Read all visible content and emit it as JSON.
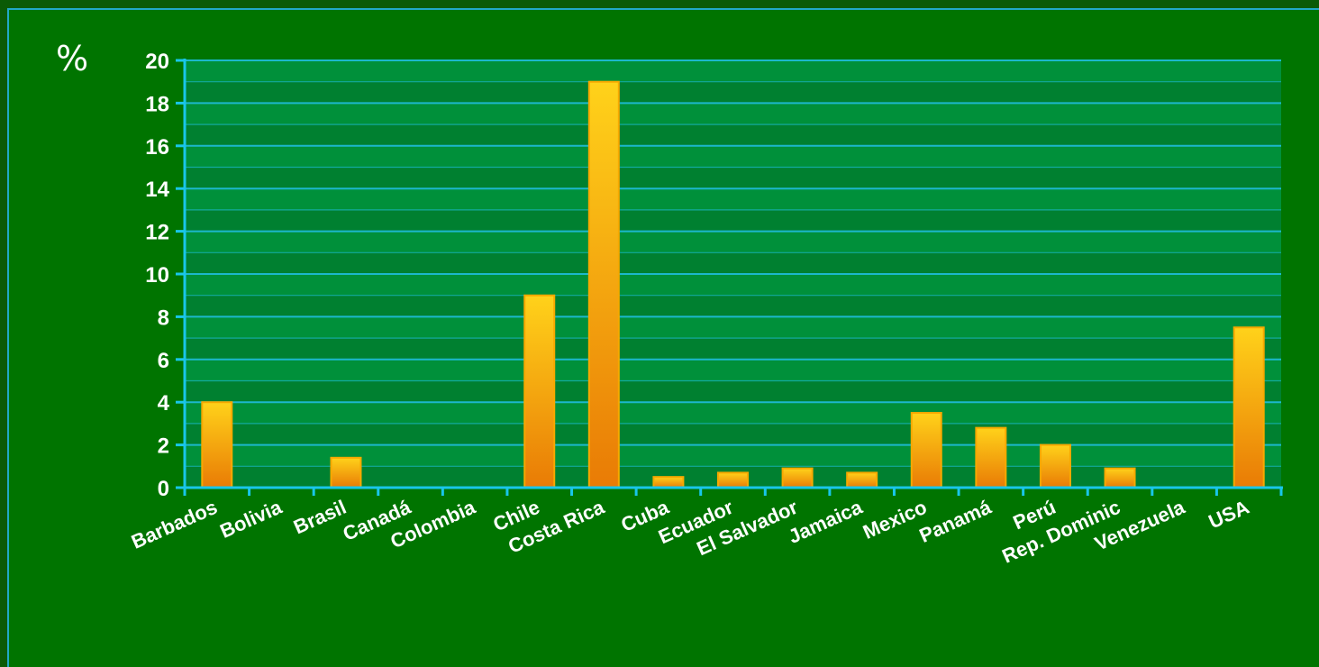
{
  "chart_data": {
    "type": "bar",
    "unit_label": "%",
    "categories": [
      "Barbados",
      "Bolivia",
      "Brasil",
      "Canadá",
      "Colombia",
      "Chile",
      "Costa Rica",
      "Cuba",
      "Ecuador",
      "El Salvador",
      "Jamaica",
      "Mexico",
      "Panamá",
      "Perú",
      "Rep. Dominic",
      "Venezuela",
      "USA"
    ],
    "values": [
      4.0,
      0,
      1.4,
      0,
      0,
      9.0,
      19.0,
      0.5,
      0.7,
      0.9,
      0.7,
      3.5,
      2.8,
      2.0,
      0.9,
      0,
      7.5
    ],
    "yticks": [
      "0",
      "2",
      "4",
      "6",
      "8",
      "10",
      "12",
      "14",
      "16",
      "18",
      "20"
    ],
    "ylim": [
      0,
      20
    ],
    "grid": true,
    "colors": {
      "background": "#007400",
      "plot_band_light": "#00903a",
      "plot_band_dark": "#008030",
      "grid_line": "#1cb8cc",
      "axis": "#19c6ea",
      "bar_top": "#ffd21a",
      "bar_bottom": "#e97b05",
      "bar_edge": "#f7a800"
    }
  }
}
